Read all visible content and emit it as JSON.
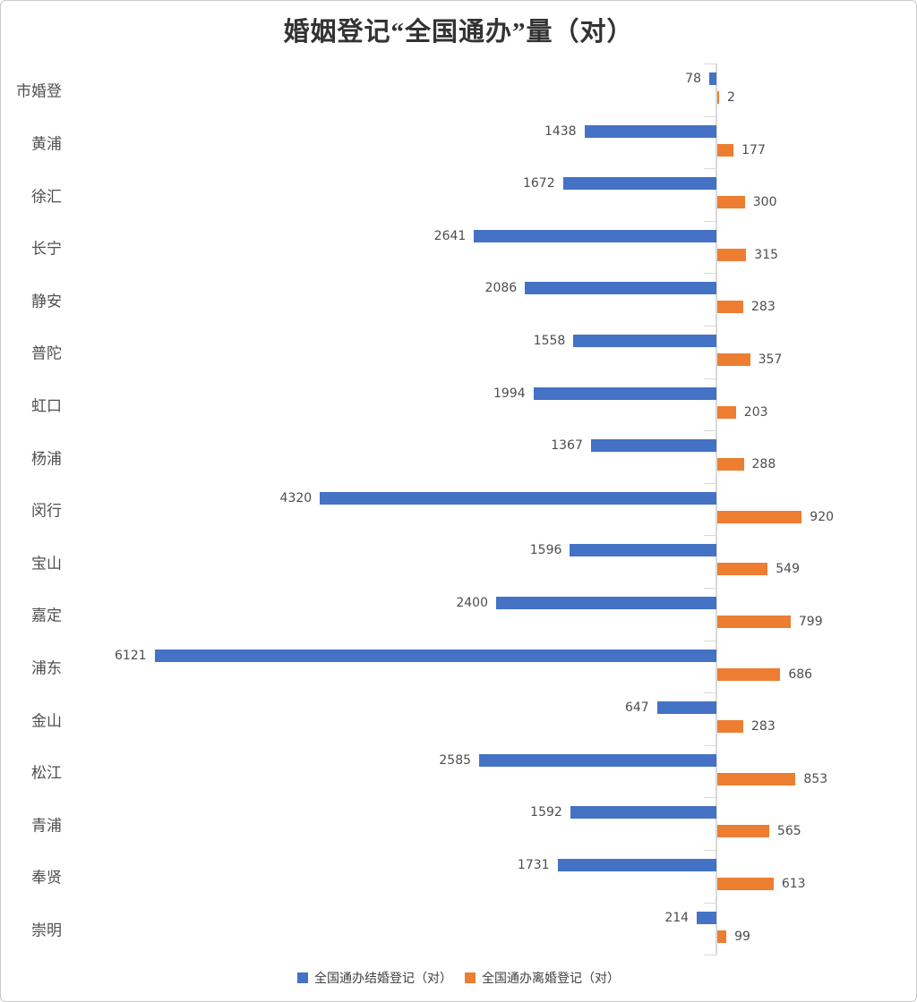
{
  "title": "婚姻登记“全国通办”量（对）",
  "colors": {
    "marriage_blue": "#4472C4",
    "divorce_orange": "#ED7D31",
    "axis_gray": "#D9D9D9",
    "text_gray": "#4D4D4D"
  },
  "legend": [
    {
      "label": "全国通办结婚登记（对）",
      "color": "#4472C4"
    },
    {
      "label": "全国通办离婚登记（对）",
      "color": "#ED7D31"
    }
  ],
  "chart_data": {
    "type": "bar",
    "orientation": "horizontal-diverging",
    "title": "婚姻登记“全国通办”量（对）",
    "categories": [
      "市婚登",
      "黄浦",
      "徐汇",
      "长宁",
      "静安",
      "普陀",
      "虹口",
      "杨浦",
      "闵行",
      "宝山",
      "嘉定",
      "浦东",
      "金山",
      "松江",
      "青浦",
      "奉贤",
      "崇明"
    ],
    "series": [
      {
        "name": "全国通办结婚登记（对）",
        "color": "#4472C4",
        "direction": "left",
        "values": [
          78,
          1438,
          1672,
          2641,
          2086,
          1558,
          1994,
          1367,
          4320,
          1596,
          2400,
          6121,
          647,
          2585,
          1592,
          1731,
          214
        ]
      },
      {
        "name": "全国通办离婚登记（对）",
        "color": "#ED7D31",
        "direction": "right",
        "values": [
          2,
          177,
          300,
          315,
          283,
          357,
          203,
          288,
          920,
          549,
          799,
          686,
          283,
          853,
          565,
          613,
          99
        ]
      }
    ],
    "value_labels": true,
    "grid": false,
    "legend_position": "bottom",
    "axis_range_left": [
      0,
      6121
    ],
    "axis_range_right": [
      0,
      920
    ]
  }
}
